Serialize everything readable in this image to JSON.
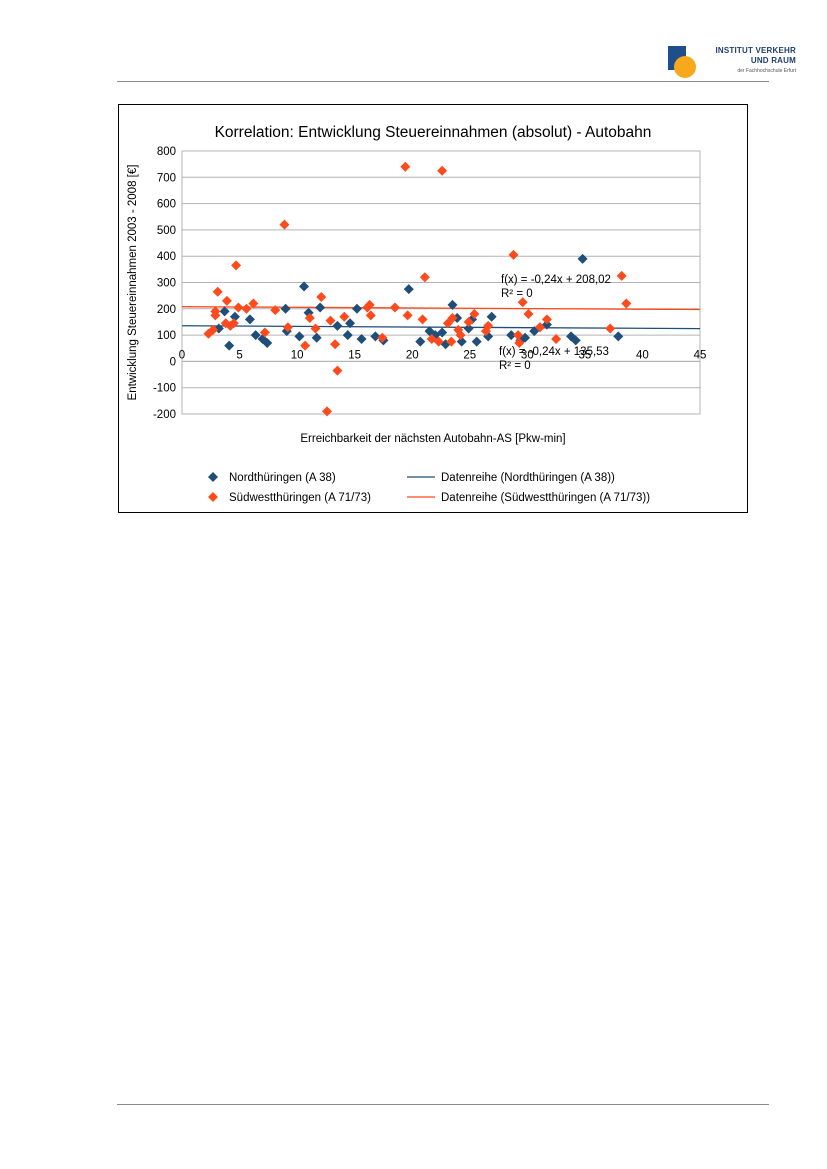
{
  "header": {
    "logo": {
      "line1": "INSTITUT VERKEHR",
      "line2": "UND RAUM",
      "line3": "der Fachhochschule Erfurt",
      "colors": {
        "block": "#1f4e8c",
        "sun": "#f7a81b"
      }
    }
  },
  "chart_data": {
    "type": "scatter",
    "title": "Korrelation: Entwicklung Steuereinnahmen (absolut) - Autobahn",
    "xlabel": "Erreichbarkeit der nächsten Autobahn-AS [Pkw-min]",
    "ylabel": "Entwicklung Steuereinnahmen 2003 - 2008 [€]",
    "xlim": [
      0,
      45
    ],
    "ylim": [
      -200,
      800
    ],
    "xticks": [
      0,
      5,
      10,
      15,
      20,
      25,
      30,
      35,
      40,
      45
    ],
    "yticks": [
      -200,
      -100,
      0,
      100,
      200,
      300,
      400,
      500,
      600,
      700,
      800
    ],
    "grid": "horizontal",
    "legend_position": "bottom",
    "series": [
      {
        "name": "Nordthüringen (A 38)",
        "color": "#1f4e79",
        "marker": "diamond",
        "points": [
          [
            3.2,
            125
          ],
          [
            3.7,
            190
          ],
          [
            4.1,
            60
          ],
          [
            4.6,
            170
          ],
          [
            5.9,
            160
          ],
          [
            6.4,
            100
          ],
          [
            7,
            85
          ],
          [
            7.4,
            70
          ],
          [
            9,
            200
          ],
          [
            9.1,
            115
          ],
          [
            10.2,
            95
          ],
          [
            10.6,
            285
          ],
          [
            11,
            185
          ],
          [
            11.7,
            90
          ],
          [
            12,
            205
          ],
          [
            13.5,
            135
          ],
          [
            14.4,
            100
          ],
          [
            14.6,
            145
          ],
          [
            15.2,
            200
          ],
          [
            15.6,
            85
          ],
          [
            16.8,
            95
          ],
          [
            17.5,
            80
          ],
          [
            19.7,
            275
          ],
          [
            20.7,
            75
          ],
          [
            21.5,
            115
          ],
          [
            22,
            100
          ],
          [
            22.6,
            110
          ],
          [
            22.9,
            65
          ],
          [
            23.5,
            215
          ],
          [
            23.9,
            165
          ],
          [
            24.3,
            75
          ],
          [
            24.9,
            125
          ],
          [
            25.2,
            160
          ],
          [
            25.6,
            75
          ],
          [
            26.6,
            95
          ],
          [
            26.9,
            170
          ],
          [
            28.6,
            100
          ],
          [
            29.4,
            80
          ],
          [
            29.8,
            90
          ],
          [
            30.6,
            115
          ],
          [
            31.1,
            130
          ],
          [
            31.7,
            140
          ],
          [
            33.8,
            95
          ],
          [
            34.2,
            80
          ],
          [
            34.8,
            390
          ],
          [
            37.9,
            95
          ]
        ]
      },
      {
        "name": "Südwestthüringen (A 71/73)",
        "color": "#ff4a1c",
        "marker": "diamond",
        "points": [
          [
            2.3,
            105
          ],
          [
            2.7,
            120
          ],
          [
            2.9,
            190
          ],
          [
            2.9,
            175
          ],
          [
            3.1,
            265
          ],
          [
            3.8,
            145
          ],
          [
            3.9,
            230
          ],
          [
            4.2,
            135
          ],
          [
            4.5,
            145
          ],
          [
            4.7,
            365
          ],
          [
            4.9,
            205
          ],
          [
            5.6,
            200
          ],
          [
            6.2,
            220
          ],
          [
            7.2,
            110
          ],
          [
            8.1,
            195
          ],
          [
            8.9,
            520
          ],
          [
            9.2,
            130
          ],
          [
            10.7,
            60
          ],
          [
            11.1,
            165
          ],
          [
            11.6,
            125
          ],
          [
            12.1,
            245
          ],
          [
            12.6,
            -190
          ],
          [
            12.9,
            155
          ],
          [
            13.3,
            65
          ],
          [
            13.5,
            -35
          ],
          [
            14.1,
            170
          ],
          [
            16.1,
            205
          ],
          [
            16.3,
            215
          ],
          [
            16.4,
            175
          ],
          [
            17.4,
            90
          ],
          [
            18.5,
            205
          ],
          [
            19.4,
            740
          ],
          [
            19.6,
            175
          ],
          [
            20.9,
            160
          ],
          [
            21.1,
            320
          ],
          [
            21.7,
            85
          ],
          [
            22.3,
            75
          ],
          [
            22.6,
            725
          ],
          [
            23.1,
            145
          ],
          [
            23.4,
            75
          ],
          [
            23.5,
            165
          ],
          [
            24,
            120
          ],
          [
            24.2,
            100
          ],
          [
            24.9,
            150
          ],
          [
            25.4,
            180
          ],
          [
            26.4,
            115
          ],
          [
            26.6,
            135
          ],
          [
            28.8,
            405
          ],
          [
            29.2,
            100
          ],
          [
            29.3,
            70
          ],
          [
            29.6,
            225
          ],
          [
            30.1,
            180
          ],
          [
            31.1,
            130
          ],
          [
            31.7,
            160
          ],
          [
            32.5,
            85
          ],
          [
            37.2,
            125
          ],
          [
            38.2,
            325
          ],
          [
            38.6,
            220
          ]
        ]
      }
    ],
    "trendlines": [
      {
        "name": "Datenreihe (Nordthüringen (A 38))",
        "color": "#1f4e79",
        "slope": -0.24,
        "intercept": 135.53,
        "equation": "f(x) = -0,24x + 135,53",
        "r2": "R² = 0"
      },
      {
        "name": "Datenreihe (Südwestthüringen (A 71/73))",
        "color": "#ff4a1c",
        "slope": -0.24,
        "intercept": 208.02,
        "equation": "f(x) = -0,24x + 208,02",
        "r2": "R² = 0"
      }
    ]
  }
}
